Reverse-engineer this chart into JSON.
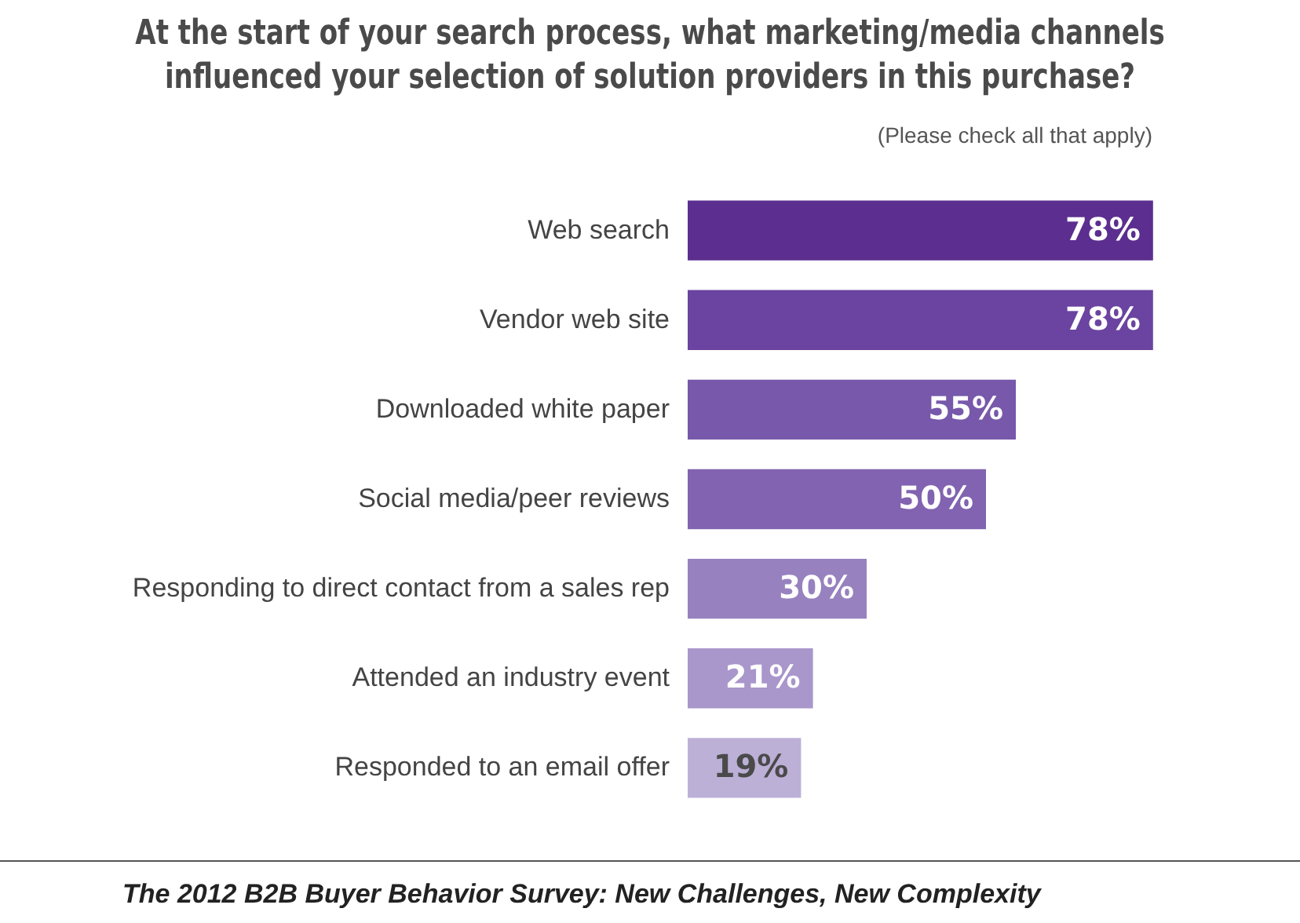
{
  "chart_data": {
    "type": "bar",
    "orientation": "horizontal",
    "title": "At the start of your search process, what marketing/media channels influenced your selection of solution providers in this purchase?",
    "subtitle": "(Please check all that apply)",
    "categories": [
      "Web search",
      "Vendor web site",
      "Downloaded white paper",
      "Social media/peer reviews",
      "Responding to direct contact from a sales rep",
      "Attended an industry event",
      "Responded to an email offer"
    ],
    "values": [
      78,
      78,
      55,
      50,
      30,
      21,
      19
    ],
    "colors": [
      "#5b2e8f",
      "#6a44a0",
      "#7758ab",
      "#8163b1",
      "#9781bf",
      "#a996cb",
      "#bcb0d7"
    ],
    "value_labels": [
      "78%",
      "78%",
      "55%",
      "50%",
      "30%",
      "21%",
      "19%"
    ],
    "xlim": [
      0,
      100
    ],
    "tick_labels": "y",
    "annotations": [
      "The 2012 B2B Buyer Behavior Survey: New Challenges, New Complexity"
    ]
  }
}
